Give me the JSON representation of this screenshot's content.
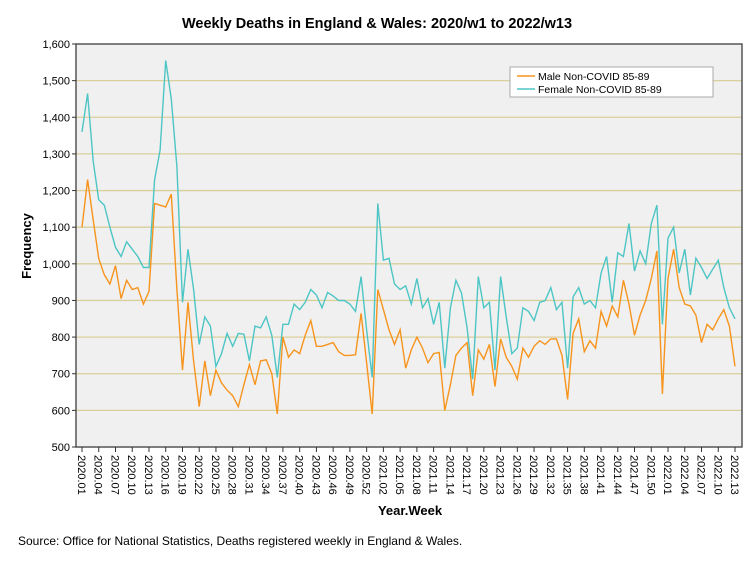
{
  "chart_data": {
    "type": "line",
    "title": "Weekly Deaths in England & Wales: 2020/w1 to 2022/w13",
    "xlabel": "Year.Week",
    "ylabel": "Frequency",
    "ylim": [
      500,
      1600
    ],
    "yticks": [
      500,
      600,
      700,
      800,
      900,
      1000,
      1100,
      1200,
      1300,
      1400,
      1500,
      1600
    ],
    "ytick_labels": [
      "500",
      "600",
      "700",
      "800",
      "900",
      "1,000",
      "1,100",
      "1,200",
      "1,300",
      "1,400",
      "1,500",
      "1,600"
    ],
    "grid": "horizontal",
    "legend_position": "top-right",
    "weeks_per_year": {
      "2020": 53,
      "2021": 52,
      "2022": 13
    },
    "x_tick_labels": [
      "2020.01",
      "2020.04",
      "2020.07",
      "2020.10",
      "2020.13",
      "2020.16",
      "2020.19",
      "2020.22",
      "2020.25",
      "2020.28",
      "2020.31",
      "2020.34",
      "2020.37",
      "2020.40",
      "2020.43",
      "2020.46",
      "2020.49",
      "2020.52",
      "2021.02",
      "2021.05",
      "2021.08",
      "2021.11",
      "2021.14",
      "2021.17",
      "2021.20",
      "2021.23",
      "2021.26",
      "2021.29",
      "2021.32",
      "2021.35",
      "2021.38",
      "2021.41",
      "2021.44",
      "2021.47",
      "2021.50",
      "2022.01",
      "2022.04",
      "2022.07",
      "2022.10",
      "2022.13"
    ],
    "series": [
      {
        "name": "Male Non-COVID 85-89",
        "color": "#f7941d",
        "values": [
          1100,
          1230,
          1120,
          1015,
          970,
          945,
          995,
          905,
          955,
          930,
          935,
          890,
          925,
          1165,
          1160,
          1155,
          1190,
          930,
          710,
          895,
          735,
          610,
          735,
          640,
          710,
          675,
          655,
          640,
          610,
          670,
          725,
          670,
          735,
          738,
          700,
          590,
          800,
          745,
          765,
          755,
          805,
          845,
          775,
          775,
          780,
          785,
          760,
          750,
          750,
          752,
          865,
          730,
          590,
          930,
          875,
          820,
          780,
          820,
          715,
          765,
          800,
          770,
          730,
          755,
          758,
          600,
          670,
          750,
          770,
          785,
          640,
          765,
          740,
          780,
          665,
          795,
          745,
          720,
          685,
          770,
          745,
          775,
          790,
          780,
          795,
          795,
          750,
          630,
          810,
          850,
          760,
          790,
          770,
          870,
          830,
          885,
          855,
          955,
          890,
          805,
          860,
          900,
          960,
          1035,
          645,
          960,
          1040,
          935,
          890,
          885,
          860,
          785,
          835,
          820,
          850,
          875,
          830,
          720
        ]
      },
      {
        "name": "Female Non-COVID 85-89",
        "color": "#4ec5c5",
        "values": [
          1360,
          1465,
          1280,
          1175,
          1160,
          1100,
          1045,
          1020,
          1060,
          1040,
          1020,
          990,
          990,
          1230,
          1310,
          1555,
          1450,
          1265,
          895,
          1040,
          930,
          780,
          855,
          830,
          720,
          755,
          810,
          775,
          810,
          808,
          735,
          830,
          825,
          855,
          805,
          690,
          835,
          835,
          890,
          875,
          895,
          930,
          915,
          880,
          922,
          912,
          900,
          900,
          890,
          870,
          965,
          820,
          690,
          1165,
          1010,
          1015,
          945,
          930,
          940,
          890,
          960,
          880,
          905,
          835,
          895,
          715,
          880,
          955,
          920,
          825,
          685,
          965,
          880,
          895,
          710,
          965,
          855,
          755,
          770,
          880,
          870,
          845,
          895,
          900,
          935,
          875,
          895,
          715,
          910,
          935,
          890,
          900,
          880,
          975,
          1020,
          895,
          1030,
          1020,
          1110,
          980,
          1035,
          1000,
          1110,
          1160,
          835,
          1070,
          1100,
          975,
          1040,
          915,
          1015,
          990,
          960,
          985,
          1010,
          935,
          880,
          850
        ]
      }
    ]
  },
  "source": "Source: Office for National Statistics, Deaths registered weekly in England & Wales."
}
